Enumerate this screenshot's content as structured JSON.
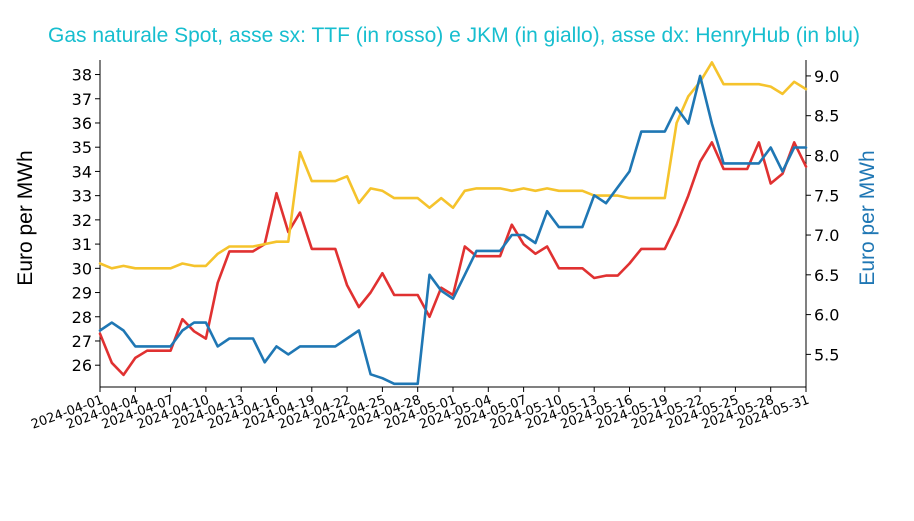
{
  "chart_data": {
    "type": "line",
    "title": "Gas naturale Spot, asse sx: TTF (in rosso) e JKM (in giallo), asse dx: HenryHub (in blu)",
    "ylabel_left": "Euro per MWh",
    "ylabel_right": "Euro per MWh",
    "x": [
      "2024-04-01",
      "2024-04-02",
      "2024-04-03",
      "2024-04-04",
      "2024-04-05",
      "2024-04-06",
      "2024-04-07",
      "2024-04-08",
      "2024-04-09",
      "2024-04-10",
      "2024-04-11",
      "2024-04-12",
      "2024-04-13",
      "2024-04-14",
      "2024-04-15",
      "2024-04-16",
      "2024-04-17",
      "2024-04-18",
      "2024-04-19",
      "2024-04-20",
      "2024-04-21",
      "2024-04-22",
      "2024-04-23",
      "2024-04-24",
      "2024-04-25",
      "2024-04-26",
      "2024-04-27",
      "2024-04-28",
      "2024-04-29",
      "2024-04-30",
      "2024-05-01",
      "2024-05-02",
      "2024-05-03",
      "2024-05-04",
      "2024-05-05",
      "2024-05-06",
      "2024-05-07",
      "2024-05-08",
      "2024-05-09",
      "2024-05-10",
      "2024-05-11",
      "2024-05-12",
      "2024-05-13",
      "2024-05-14",
      "2024-05-15",
      "2024-05-16",
      "2024-05-17",
      "2024-05-18",
      "2024-05-19",
      "2024-05-20",
      "2024-05-21",
      "2024-05-22",
      "2024-05-23",
      "2024-05-24",
      "2024-05-25",
      "2024-05-26",
      "2024-05-27",
      "2024-05-28",
      "2024-05-29",
      "2024-05-30",
      "2024-05-31"
    ],
    "x_ticks": [
      "2024-04-01",
      "2024-04-04",
      "2024-04-07",
      "2024-04-10",
      "2024-04-13",
      "2024-04-16",
      "2024-04-19",
      "2024-04-22",
      "2024-04-25",
      "2024-04-28",
      "2024-05-01",
      "2024-05-04",
      "2024-05-07",
      "2024-05-10",
      "2024-05-13",
      "2024-05-16",
      "2024-05-19",
      "2024-05-22",
      "2024-05-25",
      "2024-05-28",
      "2024-05-31"
    ],
    "left_axis": {
      "ylim": [
        25.1,
        38.6
      ],
      "ticks": [
        26,
        27,
        28,
        29,
        30,
        31,
        32,
        33,
        34,
        35,
        36,
        37,
        38
      ]
    },
    "right_axis": {
      "ylim": [
        5.09,
        9.2
      ],
      "ticks": [
        "5.5",
        "6.0",
        "6.5",
        "7.0",
        "7.5",
        "8.0",
        "8.5",
        "9.0"
      ],
      "color": "#1f77b4"
    },
    "series": [
      {
        "name": "TTF",
        "axis": "left",
        "color": "#e03131",
        "values": [
          27.3,
          26.1,
          25.6,
          26.3,
          26.6,
          26.6,
          26.6,
          27.9,
          27.4,
          27.1,
          29.4,
          30.7,
          30.7,
          30.7,
          31.0,
          33.1,
          31.5,
          32.3,
          30.8,
          30.8,
          30.8,
          29.3,
          28.4,
          29.0,
          29.8,
          28.9,
          28.9,
          28.9,
          28.0,
          29.2,
          28.9,
          30.9,
          30.5,
          30.5,
          30.5,
          31.8,
          31.0,
          30.6,
          30.9,
          30.0,
          30.0,
          30.0,
          29.6,
          29.7,
          29.7,
          30.2,
          30.8,
          30.8,
          30.8,
          31.8,
          33.0,
          34.4,
          35.2,
          34.1,
          34.1,
          34.1,
          35.2,
          33.5,
          33.9,
          35.2,
          34.2
        ]
      },
      {
        "name": "JKM",
        "axis": "left",
        "color": "#f5c32c",
        "values": [
          30.2,
          30.0,
          30.1,
          30.0,
          30.0,
          30.0,
          30.0,
          30.2,
          30.1,
          30.1,
          30.6,
          30.9,
          30.9,
          30.9,
          31.0,
          31.1,
          31.1,
          34.8,
          33.6,
          33.6,
          33.6,
          33.8,
          32.7,
          33.3,
          33.2,
          32.9,
          32.9,
          32.9,
          32.5,
          32.9,
          32.5,
          33.2,
          33.3,
          33.3,
          33.3,
          33.2,
          33.3,
          33.2,
          33.3,
          33.2,
          33.2,
          33.2,
          33.0,
          33.0,
          33.0,
          32.9,
          32.9,
          32.9,
          32.9,
          36.0,
          37.1,
          37.7,
          38.5,
          37.6,
          37.6,
          37.6,
          37.6,
          37.5,
          37.2,
          37.7,
          37.4
        ]
      },
      {
        "name": "HenryHub",
        "axis": "right",
        "color": "#1f77b4",
        "values": [
          5.8,
          5.9,
          5.8,
          5.6,
          5.6,
          5.6,
          5.6,
          5.8,
          5.9,
          5.9,
          5.6,
          5.7,
          5.7,
          5.7,
          5.4,
          5.6,
          5.5,
          5.6,
          5.6,
          5.6,
          5.6,
          5.7,
          5.8,
          5.25,
          5.2,
          5.13,
          5.13,
          5.13,
          6.5,
          6.3,
          6.2,
          6.5,
          6.8,
          6.8,
          6.8,
          7.0,
          7.0,
          6.9,
          7.3,
          7.1,
          7.1,
          7.1,
          7.5,
          7.4,
          7.6,
          7.8,
          8.3,
          8.3,
          8.3,
          8.6,
          8.4,
          9.0,
          8.4,
          7.9,
          7.9,
          7.9,
          7.9,
          8.1,
          7.8,
          8.1,
          8.1
        ]
      }
    ]
  }
}
